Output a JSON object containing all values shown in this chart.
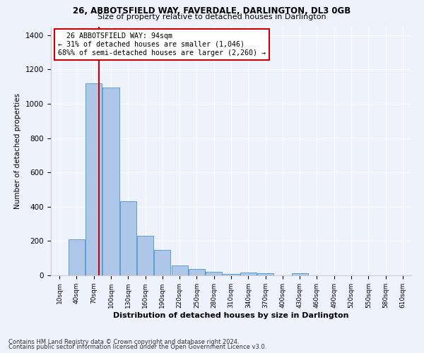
{
  "title1": "26, ABBOTSFIELD WAY, FAVERDALE, DARLINGTON, DL3 0GB",
  "title2": "Size of property relative to detached houses in Darlington",
  "xlabel": "Distribution of detached houses by size in Darlington",
  "ylabel": "Number of detached properties",
  "bar_color": "#aec6e8",
  "bar_edge_color": "#5a9fd4",
  "categories": [
    "10sqm",
    "40sqm",
    "70sqm",
    "100sqm",
    "130sqm",
    "160sqm",
    "190sqm",
    "220sqm",
    "250sqm",
    "280sqm",
    "310sqm",
    "340sqm",
    "370sqm",
    "400sqm",
    "430sqm",
    "460sqm",
    "490sqm",
    "520sqm",
    "550sqm",
    "580sqm",
    "610sqm"
  ],
  "values": [
    0,
    210,
    1120,
    1095,
    430,
    232,
    148,
    57,
    38,
    22,
    10,
    15,
    14,
    0,
    12,
    0,
    0,
    0,
    0,
    0,
    0
  ],
  "property_label": "26 ABBOTSFIELD WAY: 94sqm",
  "pct_smaller": "31%",
  "count_smaller": "1,046",
  "pct_larger_semi": "68%",
  "count_larger_semi": "2,260",
  "ylim": [
    0,
    1450
  ],
  "yticks": [
    0,
    200,
    400,
    600,
    800,
    1000,
    1200,
    1400
  ],
  "annotation_box_color": "#ffffff",
  "annotation_border_color": "#cc0000",
  "vline_color": "#cc0000",
  "footer1": "Contains HM Land Registry data © Crown copyright and database right 2024.",
  "footer2": "Contains public sector information licensed under the Open Government Licence v3.0.",
  "bg_color": "#eef2fb"
}
